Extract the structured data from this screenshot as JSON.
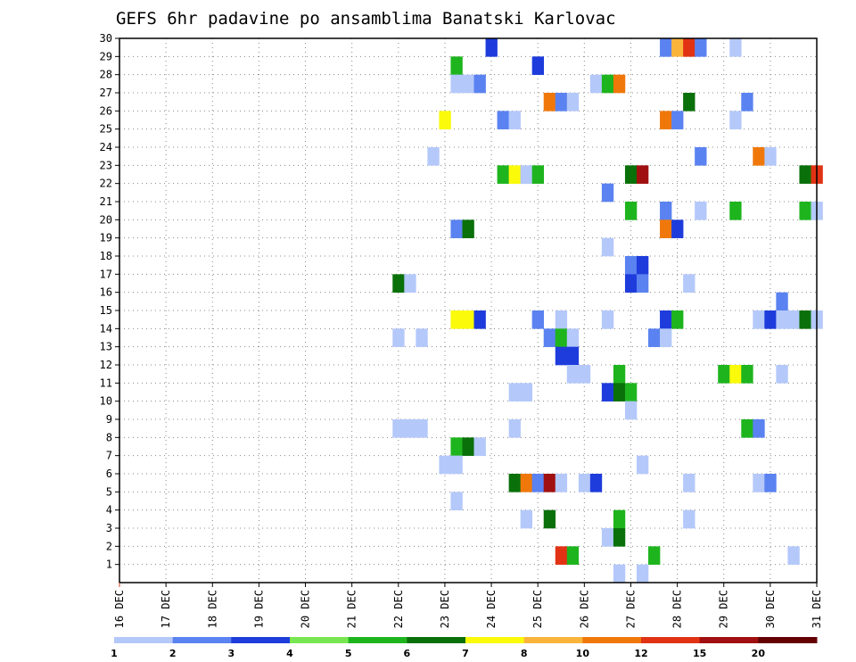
{
  "chart_data": {
    "type": "heatmap",
    "title": "GEFS 6hr padavine po ansamblima Banatski Karlovac",
    "x_tick_labels": [
      "16 DEC",
      "17 DEC",
      "18 DEC",
      "19 DEC",
      "20 DEC",
      "21 DEC",
      "22 DEC",
      "23 DEC",
      "24 DEC",
      "25 DEC",
      "26 DEC",
      "27 DEC",
      "28 DEC",
      "29 DEC",
      "30 DEC",
      "31 DEC"
    ],
    "y_tick_labels": [
      "1",
      "2",
      "3",
      "4",
      "5",
      "6",
      "7",
      "8",
      "9",
      "10",
      "11",
      "12",
      "13",
      "14",
      "15",
      "16",
      "17",
      "18",
      "19",
      "20",
      "21",
      "22",
      "23",
      "24",
      "25",
      "26",
      "27",
      "28",
      "29",
      "30"
    ],
    "x_range_days": [
      16,
      31
    ],
    "y_range": [
      0,
      30
    ],
    "grid": true,
    "legend_labels": [
      "1",
      "2",
      "3",
      "4",
      "5",
      "6",
      "7",
      "8",
      "10",
      "12",
      "15",
      "20"
    ],
    "legend_colors": [
      "#b4c8fa",
      "#5a82f0",
      "#1e3cdc",
      "#78e650",
      "#1eb41e",
      "#0a700a",
      "#fafa0a",
      "#fab43c",
      "#f0780a",
      "#e13214",
      "#a01010",
      "#640000"
    ],
    "cells": [
      [
        "24.00",
        30,
        3
      ],
      [
        "27.75",
        30,
        2
      ],
      [
        "28.00",
        30,
        8
      ],
      [
        "28.25",
        30,
        10
      ],
      [
        "28.50",
        30,
        2
      ],
      [
        "29.25",
        30,
        1
      ],
      [
        "23.25",
        29,
        5
      ],
      [
        "25.00",
        29,
        3
      ],
      [
        "23.25",
        28,
        1
      ],
      [
        "23.50",
        28,
        1
      ],
      [
        "23.75",
        28,
        2
      ],
      [
        "26.25",
        28,
        1
      ],
      [
        "26.50",
        28,
        5
      ],
      [
        "26.75",
        28,
        9
      ],
      [
        "25.25",
        27,
        9
      ],
      [
        "25.50",
        27,
        2
      ],
      [
        "25.75",
        27,
        1
      ],
      [
        "28.25",
        27,
        6
      ],
      [
        "29.50",
        27,
        2
      ],
      [
        "23.00",
        26,
        7
      ],
      [
        "24.25",
        26,
        2
      ],
      [
        "24.50",
        26,
        1
      ],
      [
        "27.75",
        26,
        9
      ],
      [
        "28.00",
        26,
        2
      ],
      [
        "29.25",
        26,
        1
      ],
      [
        "22.75",
        24,
        1
      ],
      [
        "28.50",
        24,
        2
      ],
      [
        "29.75",
        24,
        9
      ],
      [
        "30.00",
        24,
        1
      ],
      [
        "24.25",
        23,
        5
      ],
      [
        "24.50",
        23,
        7
      ],
      [
        "24.75",
        23,
        1
      ],
      [
        "25.00",
        23,
        5
      ],
      [
        "27.00",
        23,
        6
      ],
      [
        "27.25",
        23,
        11
      ],
      [
        "30.75",
        23,
        6
      ],
      [
        "31.00",
        23,
        10
      ],
      [
        "26.50",
        22,
        2
      ],
      [
        "27.00",
        21,
        5
      ],
      [
        "27.75",
        21,
        2
      ],
      [
        "28.50",
        21,
        1
      ],
      [
        "29.25",
        21,
        5
      ],
      [
        "30.75",
        21,
        5
      ],
      [
        "31.00",
        21,
        1
      ],
      [
        "23.25",
        20,
        2
      ],
      [
        "23.50",
        20,
        6
      ],
      [
        "27.75",
        20,
        9
      ],
      [
        "28.00",
        20,
        3
      ],
      [
        "26.50",
        19,
        1
      ],
      [
        "27.00",
        18,
        2
      ],
      [
        "27.25",
        18,
        3
      ],
      [
        "22.00",
        17,
        6
      ],
      [
        "22.25",
        17,
        1
      ],
      [
        "27.00",
        17,
        3
      ],
      [
        "27.25",
        17,
        2
      ],
      [
        "28.25",
        17,
        1
      ],
      [
        "30.25",
        16,
        2
      ],
      [
        "23.25",
        15,
        7
      ],
      [
        "23.50",
        15,
        7
      ],
      [
        "23.75",
        15,
        3
      ],
      [
        "25.00",
        15,
        2
      ],
      [
        "25.50",
        15,
        1
      ],
      [
        "26.50",
        15,
        1
      ],
      [
        "27.75",
        15,
        3
      ],
      [
        "28.00",
        15,
        5
      ],
      [
        "29.75",
        15,
        1
      ],
      [
        "30.00",
        15,
        3
      ],
      [
        "30.25",
        15,
        1
      ],
      [
        "30.50",
        15,
        1
      ],
      [
        "30.75",
        15,
        6
      ],
      [
        "31.00",
        15,
        1
      ],
      [
        "22.00",
        14,
        1
      ],
      [
        "22.50",
        14,
        1
      ],
      [
        "25.25",
        14,
        2
      ],
      [
        "25.50",
        14,
        5
      ],
      [
        "25.75",
        14,
        1
      ],
      [
        "27.50",
        14,
        2
      ],
      [
        "27.75",
        14,
        1
      ],
      [
        "25.50",
        13,
        3
      ],
      [
        "25.75",
        13,
        3
      ],
      [
        "25.75",
        12,
        1
      ],
      [
        "26.00",
        12,
        1
      ],
      [
        "26.75",
        12,
        5
      ],
      [
        "29.00",
        12,
        5
      ],
      [
        "29.25",
        12,
        7
      ],
      [
        "29.50",
        12,
        5
      ],
      [
        "30.25",
        12,
        1
      ],
      [
        "24.50",
        11,
        1
      ],
      [
        "24.75",
        11,
        1
      ],
      [
        "26.50",
        11,
        3
      ],
      [
        "26.75",
        11,
        6
      ],
      [
        "27.00",
        11,
        5
      ],
      [
        "27.00",
        10,
        1
      ],
      [
        "22.00",
        9,
        1
      ],
      [
        "22.25",
        9,
        1
      ],
      [
        "22.50",
        9,
        1
      ],
      [
        "24.50",
        9,
        1
      ],
      [
        "29.50",
        9,
        5
      ],
      [
        "29.75",
        9,
        2
      ],
      [
        "23.25",
        8,
        5
      ],
      [
        "23.50",
        8,
        6
      ],
      [
        "23.75",
        8,
        1
      ],
      [
        "23.00",
        7,
        1
      ],
      [
        "23.25",
        7,
        1
      ],
      [
        "27.25",
        7,
        1
      ],
      [
        "24.50",
        6,
        6
      ],
      [
        "24.75",
        6,
        9
      ],
      [
        "25.00",
        6,
        2
      ],
      [
        "25.25",
        6,
        11
      ],
      [
        "25.50",
        6,
        1
      ],
      [
        "26.00",
        6,
        1
      ],
      [
        "26.25",
        6,
        3
      ],
      [
        "28.25",
        6,
        1
      ],
      [
        "29.75",
        6,
        1
      ],
      [
        "30.00",
        6,
        2
      ],
      [
        "23.25",
        5,
        1
      ],
      [
        "24.75",
        4,
        1
      ],
      [
        "25.25",
        4,
        6
      ],
      [
        "26.75",
        4,
        5
      ],
      [
        "28.25",
        4,
        1
      ],
      [
        "26.50",
        3,
        1
      ],
      [
        "26.75",
        3,
        6
      ],
      [
        "25.50",
        2,
        10
      ],
      [
        "25.75",
        2,
        5
      ],
      [
        "27.50",
        2,
        5
      ],
      [
        "30.50",
        2,
        1
      ],
      [
        "26.75",
        1,
        1
      ],
      [
        "27.25",
        1,
        1
      ]
    ]
  }
}
